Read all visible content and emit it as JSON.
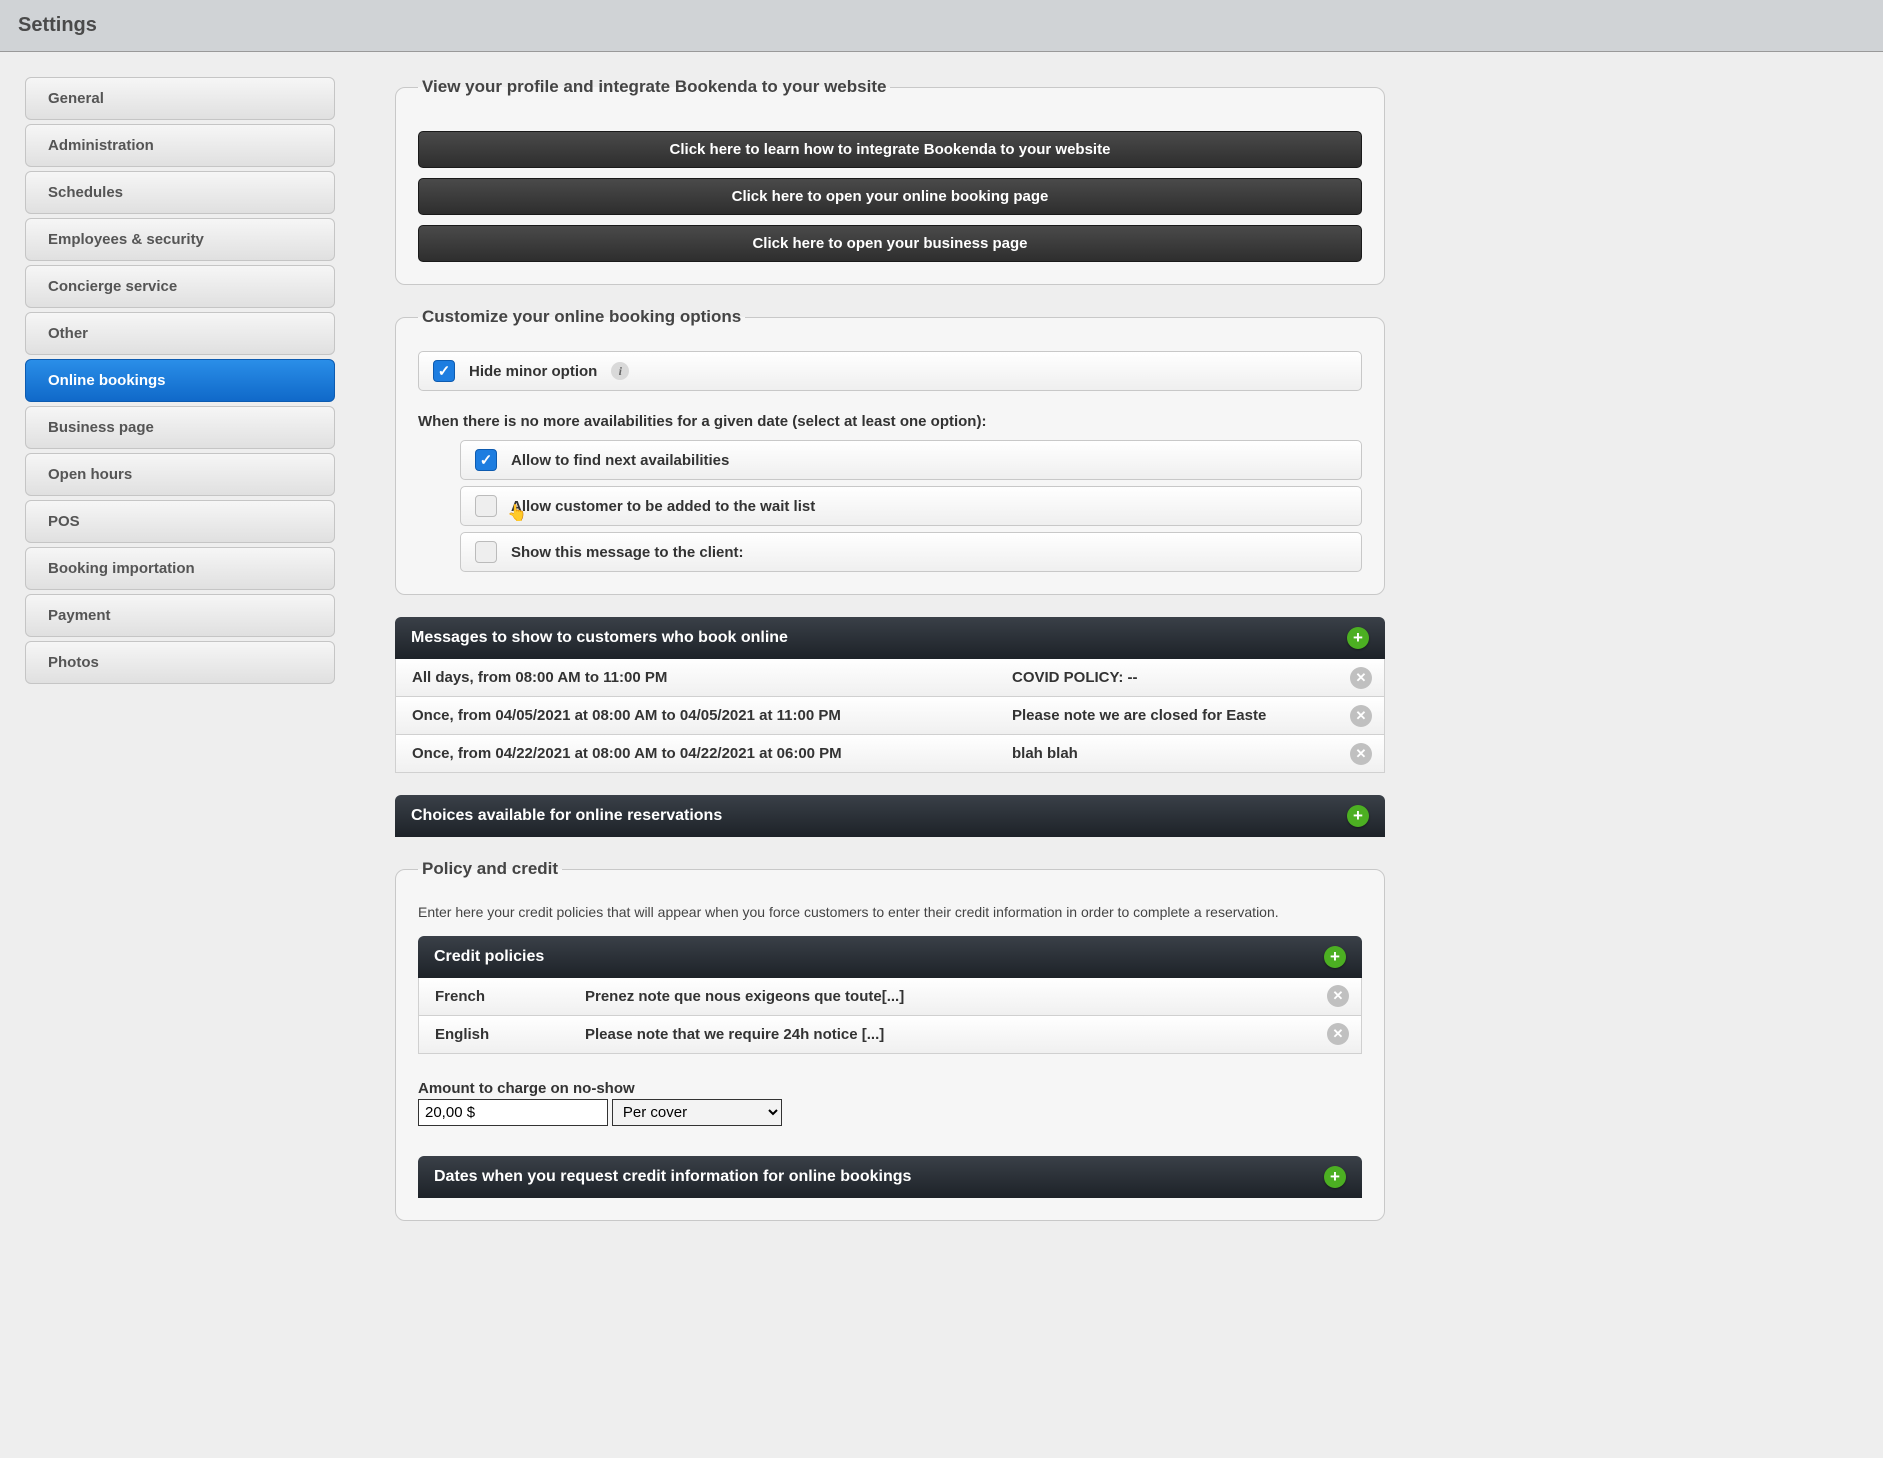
{
  "header": {
    "title": "Settings"
  },
  "sidebar": {
    "items": [
      {
        "label": "General",
        "active": false
      },
      {
        "label": "Administration",
        "active": false
      },
      {
        "label": "Schedules",
        "active": false
      },
      {
        "label": "Employees & security",
        "active": false
      },
      {
        "label": "Concierge service",
        "active": false
      },
      {
        "label": "Other",
        "active": false
      },
      {
        "label": "Online bookings",
        "active": true
      },
      {
        "label": "Business page",
        "active": false
      },
      {
        "label": "Open hours",
        "active": false
      },
      {
        "label": "POS",
        "active": false
      },
      {
        "label": "Booking importation",
        "active": false
      },
      {
        "label": "Payment",
        "active": false
      },
      {
        "label": "Photos",
        "active": false
      }
    ]
  },
  "profile_section": {
    "legend": "View your profile and integrate Bookenda to your website",
    "buttons": [
      "Click here to learn how to integrate Bookenda to your website",
      "Click here to open your online booking page",
      "Click here to open your business page"
    ]
  },
  "customize_section": {
    "legend": "Customize your online booking options",
    "hide_minor": {
      "checked": true,
      "label": "Hide minor option"
    },
    "no_avail_heading": "When there is no more availabilities for a given date (select at least one option):",
    "options": [
      {
        "checked": true,
        "label": "Allow to find next availabilities"
      },
      {
        "checked": false,
        "label": "Allow customer to be added to the wait list"
      },
      {
        "checked": false,
        "label": "Show this message to the client:"
      }
    ]
  },
  "messages_section": {
    "title": "Messages to show to customers who book online",
    "rows": [
      {
        "when": "All days, from 08:00 AM to 11:00 PM",
        "text": "COVID POLICY: --"
      },
      {
        "when": "Once, from 04/05/2021 at 08:00 AM to 04/05/2021 at 11:00 PM",
        "text": "Please note we are closed for Easte"
      },
      {
        "when": "Once, from 04/22/2021 at 08:00 AM to 04/22/2021 at 06:00 PM",
        "text": "blah blah"
      }
    ]
  },
  "choices_section": {
    "title": "Choices available for online reservations"
  },
  "policy_section": {
    "legend": "Policy and credit",
    "description": "Enter here your credit policies that will appear when you force customers to enter their credit information in order to complete a reservation.",
    "credit_title": "Credit policies",
    "rows": [
      {
        "lang": "French",
        "text": "Prenez note que nous exigeons que toute[...]"
      },
      {
        "lang": "English",
        "text": "Please note that we require 24h notice [...]"
      }
    ],
    "amount_label": "Amount to charge on no-show",
    "amount_value": "20,00 $",
    "per_options": [
      "Per cover"
    ],
    "per_selected": "Per cover",
    "dates_title": "Dates when you request credit information for online bookings"
  }
}
